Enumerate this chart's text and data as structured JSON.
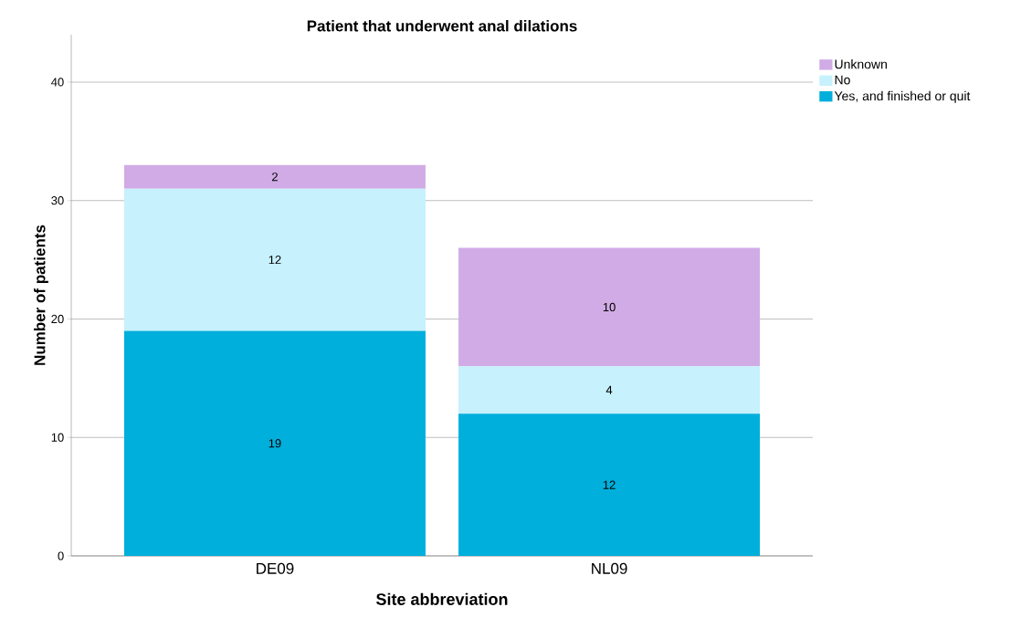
{
  "chart_data": {
    "type": "bar",
    "title": "Patient that underwent anal dilations",
    "xlabel": "Site abbreviation",
    "ylabel": "Number of patients",
    "categories": [
      "DE09",
      "NL09"
    ],
    "stacked": true,
    "series": [
      {
        "name": "Yes, and finished or quit",
        "color": "#00afdb",
        "values": [
          19,
          12
        ]
      },
      {
        "name": "No",
        "color": "#c6f1fd",
        "values": [
          12,
          4
        ]
      },
      {
        "name": "Unknown",
        "color": "#d1abe5",
        "values": [
          2,
          10
        ]
      }
    ],
    "ylim": [
      0,
      44
    ],
    "yticks": [
      0,
      10,
      20,
      30,
      40
    ],
    "grid": "y",
    "legend": "top right",
    "data_labels": true
  }
}
